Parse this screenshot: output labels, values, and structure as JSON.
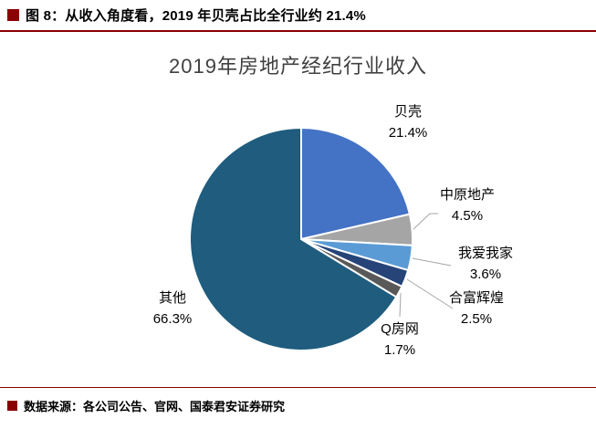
{
  "header": {
    "title": "图 8：从收入角度看，2019 年贝壳占比全行业约 21.4%"
  },
  "chart_data": {
    "type": "pie",
    "title": "2019年房地产经纪行业收入",
    "labels": [
      "贝壳",
      "中原地产",
      "我爱我家",
      "合富辉煌",
      "Q房网",
      "其他"
    ],
    "values": [
      21.4,
      4.5,
      3.6,
      2.5,
      1.7,
      66.3
    ],
    "value_labels": [
      "21.4%",
      "4.5%",
      "3.6%",
      "2.5%",
      "1.7%",
      "66.3%"
    ],
    "colors": [
      "#4472C4",
      "#A5A5A5",
      "#5B9BD5",
      "#264478",
      "#595959",
      "#1F5C7E"
    ],
    "start_angle_deg": 0,
    "direction": "clockwise",
    "legend_position": "none",
    "data_labels": "outside"
  },
  "footer": {
    "source": "数据来源：各公司公告、官网、国泰君安证券研究"
  },
  "colors": {
    "accent": "#8B0000",
    "chart_title": "#404040",
    "leader_line": "#A6A6A6",
    "slice_border": "#FFFFFF"
  }
}
